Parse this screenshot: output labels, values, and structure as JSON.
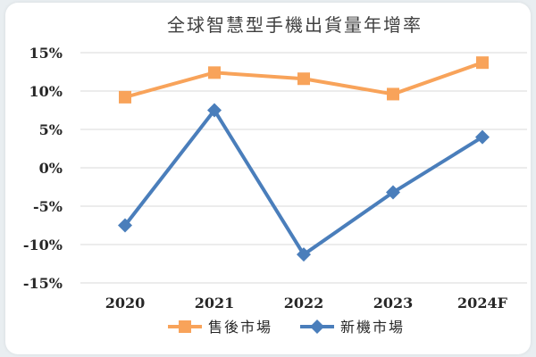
{
  "chart_data": {
    "type": "line",
    "title": "全球智慧型手機出貨量年增率",
    "categories": [
      "2020",
      "2021",
      "2022",
      "2023",
      "2024F"
    ],
    "y_ticks": [
      "15%",
      "10%",
      "5%",
      "0%",
      "-5%",
      "-10%",
      "-15%"
    ],
    "ylim": [
      -15,
      15
    ],
    "y_unit": "%",
    "grid": true,
    "legend_position": "bottom",
    "series": [
      {
        "name": "售後市場",
        "values": [
          9.2,
          12.4,
          11.6,
          9.6,
          13.7
        ],
        "color": "#f8a35a",
        "marker": "square"
      },
      {
        "name": "新機市場",
        "values": [
          -7.5,
          7.5,
          -11.3,
          -3.2,
          4.0
        ],
        "color": "#4a7ebb",
        "marker": "diamond"
      }
    ]
  }
}
